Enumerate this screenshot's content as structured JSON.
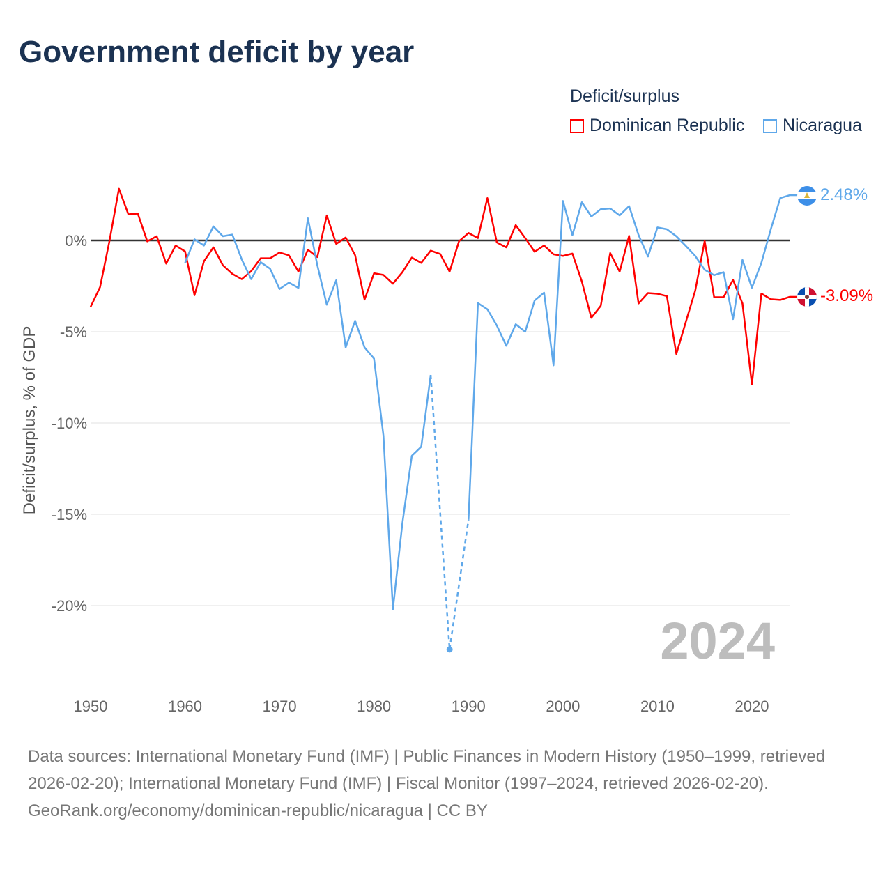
{
  "chart_data": {
    "type": "line",
    "title": "Government deficit by year",
    "ylabel": "Deficit/surplus, % of GDP",
    "xlabel": "",
    "legend_title": "Deficit/surplus",
    "legend_position": "top-right",
    "xlim": [
      1950,
      2024
    ],
    "ylim": [
      -22.5,
      3
    ],
    "x_ticks": [
      1950,
      1960,
      1970,
      1980,
      1990,
      2000,
      2010,
      2020
    ],
    "x_tick_labels": [
      "1950",
      "1960",
      "1970",
      "1980",
      "1990",
      "2000",
      "2010",
      "2020"
    ],
    "y_ticks": [
      0,
      -5,
      -10,
      -15,
      -20
    ],
    "y_tick_labels": [
      "0%",
      "-5%",
      "-10%",
      "-15%",
      "-20%"
    ],
    "grid": true,
    "year_label": "2024",
    "series": [
      {
        "name": "Dominican Republic",
        "color": "#ff0000",
        "start_year": 1950,
        "end_label": "-3.09%",
        "values": [
          -3.64,
          -2.56,
          -0.03,
          2.83,
          1.43,
          1.47,
          -0.05,
          0.23,
          -1.27,
          -0.28,
          -0.6,
          -3.0,
          -1.14,
          -0.38,
          -1.36,
          -1.83,
          -2.12,
          -1.68,
          -0.98,
          -0.98,
          -0.66,
          -0.82,
          -1.71,
          -0.51,
          -0.91,
          1.37,
          -0.19,
          0.16,
          -0.81,
          -3.24,
          -1.8,
          -1.89,
          -2.37,
          -1.74,
          -0.94,
          -1.23,
          -0.56,
          -0.74,
          -1.71,
          -0.04,
          0.41,
          0.13,
          2.32,
          -0.11,
          -0.38,
          0.84,
          0.13,
          -0.62,
          -0.28,
          -0.76,
          -0.85,
          -0.72,
          -2.25,
          -4.24,
          -3.58,
          -0.69,
          -1.71,
          0.25,
          -3.45,
          -2.88,
          -2.92,
          -3.05,
          -6.22,
          -4.47,
          -2.75,
          -0.03,
          -3.11,
          -3.11,
          -2.16,
          -3.45,
          -7.89,
          -2.91,
          -3.22,
          -3.26,
          -3.09
        ]
      },
      {
        "name": "Nicaragua",
        "color": "#5fa8ea",
        "start_year": 1960,
        "end_label": "2.48%",
        "values": [
          -1.23,
          0.06,
          -0.28,
          0.77,
          0.23,
          0.32,
          -1.04,
          -2.12,
          -1.19,
          -1.55,
          -2.66,
          -2.31,
          -2.6,
          1.21,
          -1.36,
          -3.52,
          -2.18,
          -5.86,
          -4.4,
          -5.86,
          -6.47,
          -10.7,
          -20.2,
          -15.5,
          -11.8,
          -11.3,
          -7.37,
          null,
          -22.4,
          null,
          -15.3,
          -3.43,
          -3.77,
          -4.66,
          -5.77,
          -4.59,
          -5.0,
          -3.29,
          -2.86,
          -6.84,
          2.16,
          0.29,
          2.09,
          1.31,
          1.71,
          1.75,
          1.37,
          1.88,
          0.3,
          -0.88,
          0.71,
          0.61,
          0.23,
          -0.3,
          -0.85,
          -1.61,
          -1.9,
          -1.74,
          -4.31,
          -1.07,
          -2.59,
          -1.23,
          0.61,
          2.32,
          2.48
        ]
      }
    ]
  },
  "footer": {
    "sources": "Data sources: International Monetary Fund (IMF) | Public Finances in Modern History (1950–1999, retrieved 2026-02-20); International Monetary Fund (IMF) | Fiscal Monitor (1997–2024, retrieved 2026-02-20).",
    "credit": "GeoRank.org/economy/dominican-republic/nicaragua | CC BY"
  }
}
